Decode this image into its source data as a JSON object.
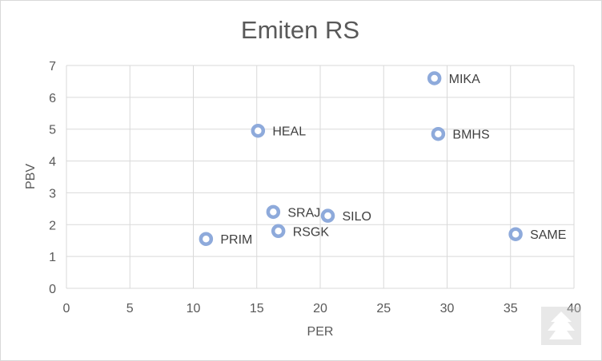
{
  "chart_data": {
    "type": "scatter",
    "title": "Emiten RS",
    "xlabel": "PER",
    "ylabel": "PBV",
    "xlim": [
      0,
      40
    ],
    "ylim": [
      0,
      7
    ],
    "xticks": [
      0,
      5,
      10,
      15,
      20,
      25,
      30,
      35,
      40
    ],
    "yticks": [
      0,
      1,
      2,
      3,
      4,
      5,
      6,
      7
    ],
    "grid": true,
    "legend": "none",
    "marker_color": "#8eaadb",
    "points": [
      {
        "label": "MIKA",
        "x": 29.0,
        "y": 6.6
      },
      {
        "label": "HEAL",
        "x": 15.1,
        "y": 4.95
      },
      {
        "label": "BMHS",
        "x": 29.3,
        "y": 4.85
      },
      {
        "label": "SRAJ",
        "x": 16.3,
        "y": 2.4
      },
      {
        "label": "SILO",
        "x": 20.6,
        "y": 2.28
      },
      {
        "label": "RSGK",
        "x": 16.7,
        "y": 1.8
      },
      {
        "label": "SAME",
        "x": 35.4,
        "y": 1.7
      },
      {
        "label": "PRIM",
        "x": 11.0,
        "y": 1.55
      }
    ]
  }
}
